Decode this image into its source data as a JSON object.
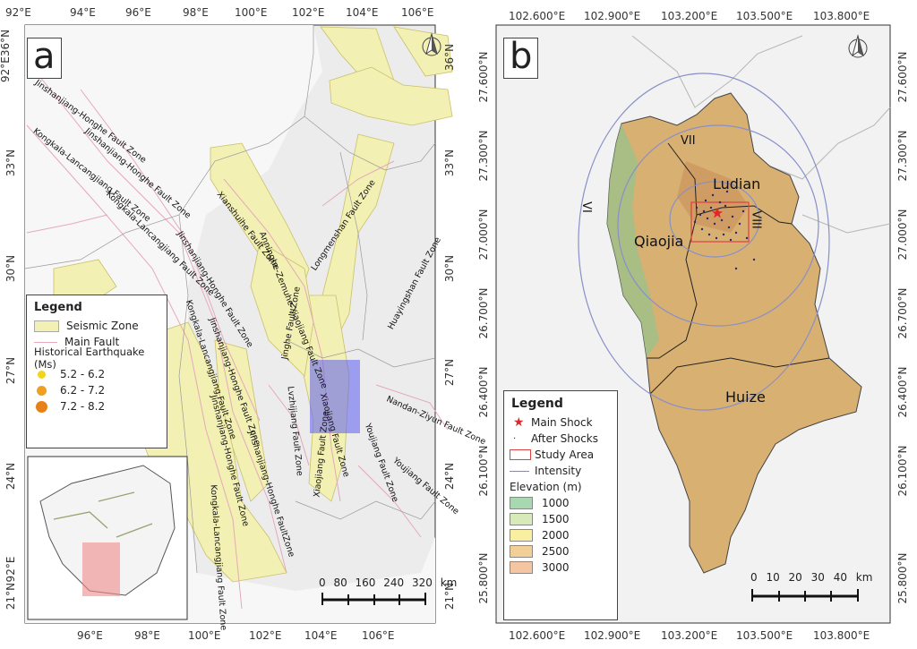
{
  "panel_a": {
    "letter": "a",
    "top_ticks": [
      "92°E",
      "94°E",
      "96°E",
      "98°E",
      "100°E",
      "102°E",
      "104°E",
      "106°E"
    ],
    "bottom_ticks": [
      "96°E",
      "98°E",
      "100°E",
      "102°E",
      "104°E",
      "106°E"
    ],
    "left_ticks": [
      "92°E36°N",
      "33°N",
      "30°N",
      "27°N",
      "24°N",
      "21°N"
    ],
    "left_corner": "92°E",
    "right_ticks": [
      "36°N",
      "33°N",
      "30°N",
      "27°N",
      "24°N",
      "21°N"
    ],
    "legend": {
      "title": "Legend",
      "seismic_zone": "Seismic Zone",
      "main_fault": "Main Fault",
      "hist_title": "Historical Earthquake (Ms)",
      "classes": [
        "5.2 - 6.2",
        "6.2 - 7.2",
        "7.2 - 8.2"
      ],
      "colors": [
        "#f2d41a",
        "#f0a020",
        "#e8801a"
      ]
    },
    "faults": [
      "Jinshanjiang-Honghe Fault Zone",
      "Kongkala-Lancangjiang Fault Zone",
      "Jinshanjiang-Honghe Fault Zone",
      "Kongkala-Lancangjiang Fault Zone",
      "Jinshanjiang-Honghe Fault Zone",
      "Kongkala-Lancangjiang Fault Zone",
      "Jinshanjiang-Honghe Fault Zone",
      "Xianshuihe Fault Zone",
      "Anninghe-Zemuhe-Xiaojiang Fault Zone",
      "Longmenshan Fault Zone",
      "Jinghe Fault Zone",
      "Lvzhijiang Fault Zone",
      "Xiaojiang Fault Zone",
      "Xiaojiang Fault Zone",
      "Huayingshan Fault Zone",
      "Nandan-Ziyun Fault Zone",
      "Youjiang Fault Zone",
      "Youjiang Fault Zone",
      "Jinshanjiang-Honghe Fault Zone",
      "Kongkala-Lancangjiang Fault Zone",
      "Jinshanjiang-Honghe FaultZone"
    ],
    "scale_numbers": "0 80 160 240 320 km",
    "north_icon": "north-arrow-icon"
  },
  "panel_b": {
    "letter": "b",
    "top_ticks": [
      "102.600°E",
      "102.900°E",
      "103.200°E",
      "103.500°E",
      "103.800°E"
    ],
    "bottom_ticks": [
      "102.600°E",
      "102.900°E",
      "103.200°E",
      "103.500°E",
      "103.800°E"
    ],
    "lat_ticks": [
      "27.600°N",
      "27.300°N",
      "27.000°N",
      "26.700°N",
      "26.400°N",
      "26.100°N",
      "25.800°N"
    ],
    "places": [
      "Ludian",
      "Qiaojia",
      "Huize"
    ],
    "intensity_labels": [
      "VII",
      "VI",
      "VIII"
    ],
    "legend": {
      "title": "Legend",
      "main_shock": "Main Shock",
      "after_shocks": "After Shocks",
      "study_area": "Study Area",
      "intensity": "Intensity",
      "elev_title": "Elevation (m)",
      "elev_classes": [
        "1000",
        "1500",
        "2000",
        "2500",
        "3000"
      ],
      "elev_colors": [
        "#a8d8b0",
        "#d8eab8",
        "#f8f0a0",
        "#f3cf98",
        "#f5c4a0"
      ]
    },
    "scale_numbers": "0 10 20 30 40 km",
    "north_icon": "north-arrow-icon"
  }
}
